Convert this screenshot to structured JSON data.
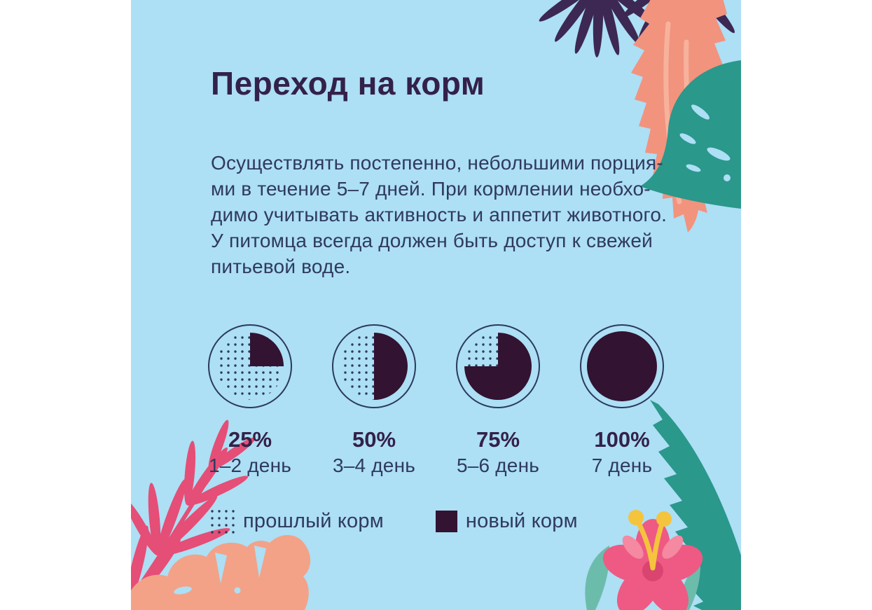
{
  "title": "Переход на корм",
  "description": "Осуществлять постепенно, небольшими порция-\nми в течение 5–7 дней. При кормлении необхо-\nдимо учитывать активность и аппетит животного.\nУ питомца всегда должен быть доступ к свежей\nпитьевой воде.",
  "chart_data": {
    "type": "pie",
    "title": "Переход на корм",
    "units": "%",
    "legend_position": "bottom",
    "legend": [
      {
        "label": "прошлый корм",
        "swatch": "dotted"
      },
      {
        "label": "новый корм",
        "swatch": "solid"
      }
    ],
    "series": [
      {
        "percent_label": "25%",
        "day_label": "1–2 день",
        "new_food": 25,
        "old_food": 75
      },
      {
        "percent_label": "50%",
        "day_label": "3–4 день",
        "new_food": 50,
        "old_food": 50
      },
      {
        "percent_label": "75%",
        "day_label": "5–6 день",
        "new_food": 75,
        "old_food": 25
      },
      {
        "percent_label": "100%",
        "day_label": "7 день",
        "new_food": 100,
        "old_food": 0
      }
    ]
  },
  "colors": {
    "page_bg": "#ffffff",
    "card_bg": "#addff5",
    "title_text": "#332149",
    "body_text": "#2f3a5e",
    "pie_dark": "#321331",
    "outline_navy": "#2a3a5c",
    "leaf_purple": "#3c2853",
    "leaf_coral": "#f2937e",
    "leaf_coral_light": "#f7b29c",
    "leaf_teal": "#2a988b",
    "leaf_teal_light": "#6cbcab",
    "leaf_pink": "#e54e76",
    "leaf_salmon": "#f3a287",
    "flower_pink": "#ee5a83",
    "flower_pink_dark": "#d94570",
    "flower_pink_light": "#f489a1",
    "stamen_yellow": "#f4c43d"
  }
}
